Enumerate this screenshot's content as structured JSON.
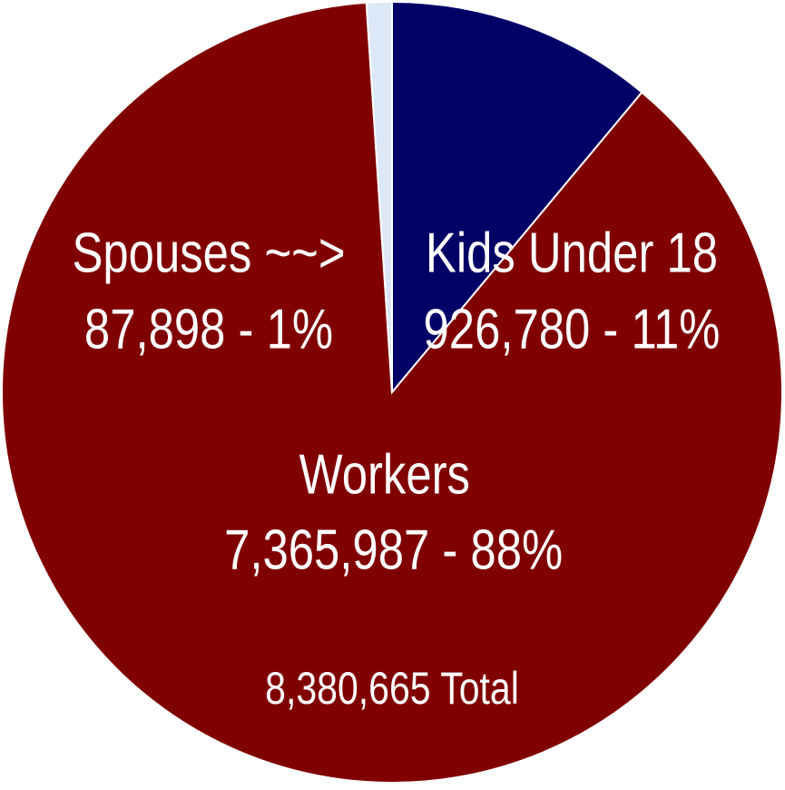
{
  "chart_data": {
    "type": "pie",
    "categories": [
      "Kids Under 18",
      "Workers",
      "Spouses ~~>"
    ],
    "values": [
      926780,
      7365987,
      87898
    ],
    "value_labels": [
      "926,780 - 11%",
      "7,365,987 - 88%",
      "87,898 - 1%"
    ],
    "colors": [
      "#000066",
      "#800000",
      "#dce8f8"
    ],
    "total_label": "8,380,665 Total"
  }
}
